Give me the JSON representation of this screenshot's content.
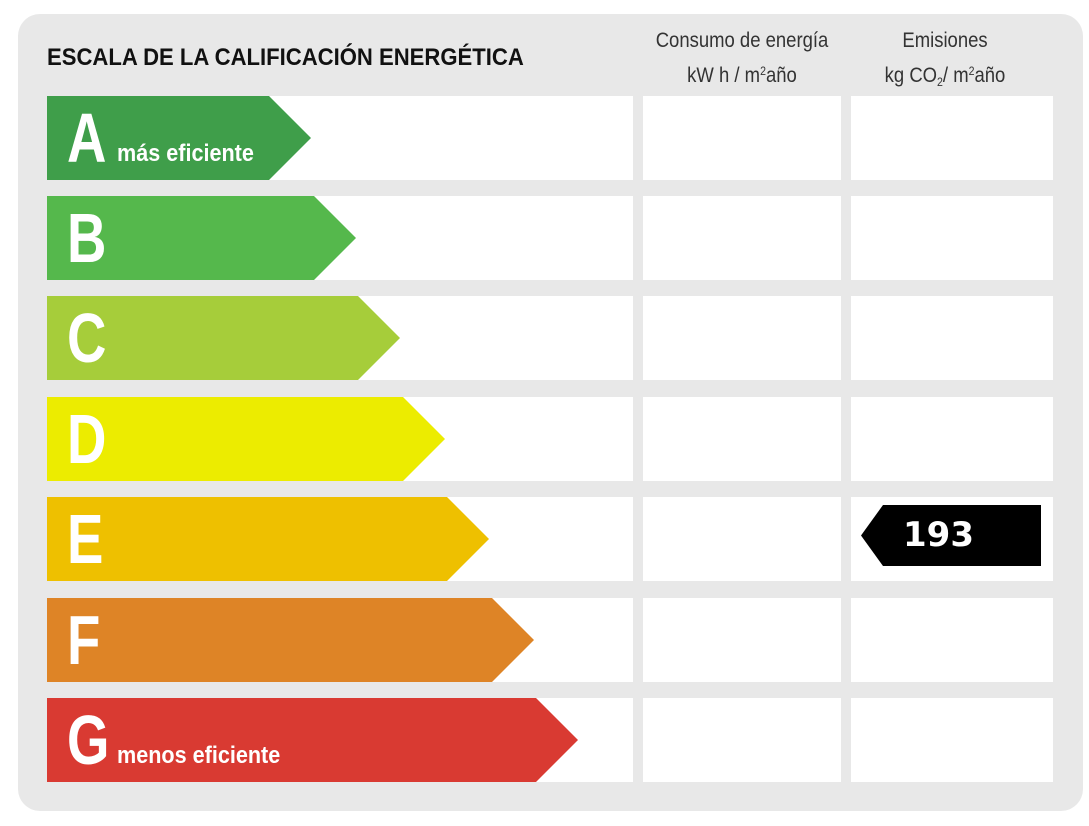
{
  "title": "ESCALA DE LA CALIFICACIÓN ENERGÉTICA",
  "columns": {
    "consumo": {
      "line1": "Consumo de energía",
      "line2_pre": "kW h / m",
      "line2_sup": "2",
      "line2_post": "año"
    },
    "emisiones": {
      "line1": "Emisiones",
      "line2_pre": "kg CO",
      "line2_sub": "2",
      "line2_mid": "/ m",
      "line2_sup": "2",
      "line2_post": "año"
    }
  },
  "ratings": [
    {
      "letter": "A",
      "label": "más eficiente",
      "color": "#3f9e4a"
    },
    {
      "letter": "B",
      "label": "",
      "color": "#55b84c"
    },
    {
      "letter": "C",
      "label": "",
      "color": "#a6cd3a"
    },
    {
      "letter": "D",
      "label": "",
      "color": "#ecec00"
    },
    {
      "letter": "E",
      "label": "",
      "color": "#eec000"
    },
    {
      "letter": "F",
      "label": "",
      "color": "#de8426"
    },
    {
      "letter": "G",
      "label": "menos eficiente",
      "color": "#d93a32"
    }
  ],
  "indicator": {
    "rating": "E",
    "column": "emisiones",
    "value": "193",
    "color": "#000000"
  }
}
